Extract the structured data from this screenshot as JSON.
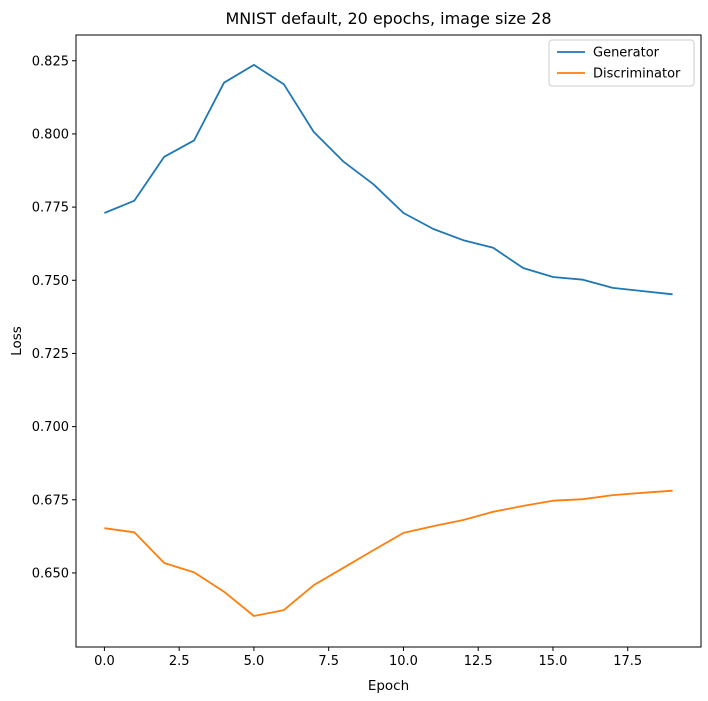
{
  "chart_data": {
    "type": "line",
    "title": "MNIST default, 20 epochs, image size 28",
    "xlabel": "Epoch",
    "ylabel": "Loss",
    "xlim": [
      -0.95,
      19.95
    ],
    "ylim": [
      0.6247,
      0.8338
    ],
    "xticks": [
      0.0,
      2.5,
      5.0,
      7.5,
      10.0,
      12.5,
      15.0,
      17.5
    ],
    "xtick_labels": [
      "0.0",
      "2.5",
      "5.0",
      "7.5",
      "10.0",
      "12.5",
      "15.0",
      "17.5"
    ],
    "yticks": [
      0.65,
      0.675,
      0.7,
      0.725,
      0.75,
      0.775,
      0.8,
      0.825
    ],
    "ytick_labels": [
      "0.650",
      "0.675",
      "0.700",
      "0.725",
      "0.750",
      "0.775",
      "0.800",
      "0.825"
    ],
    "grid": false,
    "legend_position": "top-right",
    "x": [
      0,
      1,
      2,
      3,
      4,
      5,
      6,
      7,
      8,
      9,
      10,
      11,
      12,
      13,
      14,
      15,
      16,
      17,
      18,
      19
    ],
    "series": [
      {
        "name": "Generator",
        "color": "#1f77b4",
        "values": [
          0.773,
          0.7772,
          0.7922,
          0.7978,
          0.8175,
          0.8236,
          0.817,
          0.8007,
          0.7905,
          0.7828,
          0.773,
          0.7675,
          0.7637,
          0.7611,
          0.7542,
          0.7511,
          0.7502,
          0.7474,
          0.7463,
          0.7452
        ]
      },
      {
        "name": "Discriminator",
        "color": "#ff7f0e",
        "values": [
          0.6653,
          0.6639,
          0.6534,
          0.6502,
          0.6436,
          0.6353,
          0.6373,
          0.6458,
          0.6518,
          0.6578,
          0.6637,
          0.666,
          0.6681,
          0.6709,
          0.6729,
          0.6747,
          0.6752,
          0.6766,
          0.6774,
          0.6781
        ]
      }
    ]
  }
}
